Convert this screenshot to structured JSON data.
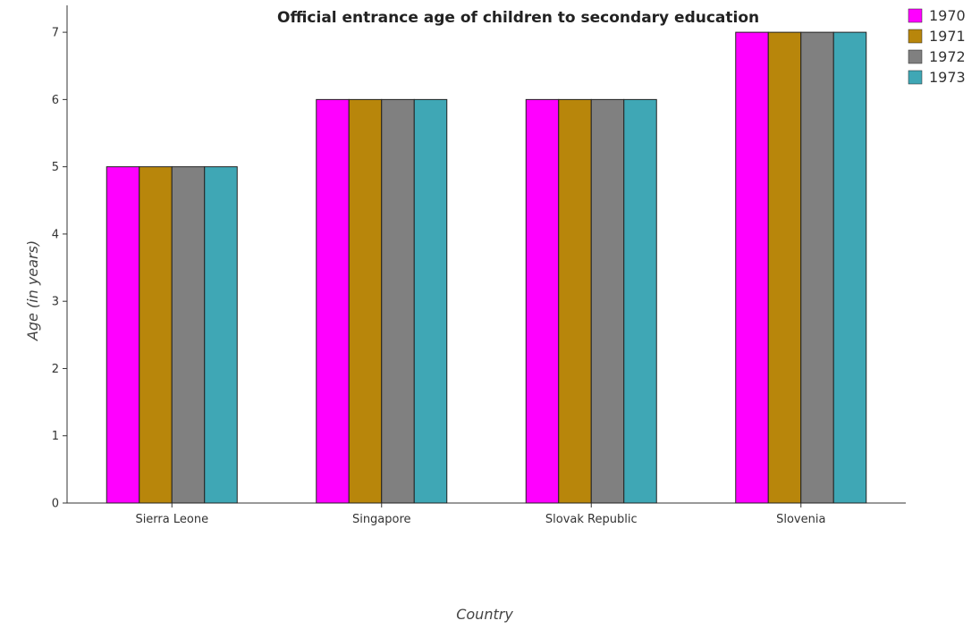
{
  "chart_data": {
    "type": "bar",
    "title": "Official entrance age of children to secondary education",
    "xlabel": "Country",
    "ylabel": "Age (in years)",
    "categories": [
      "Sierra Leone",
      "Singapore",
      "Slovak Republic",
      "Slovenia"
    ],
    "series": [
      {
        "name": "1970",
        "color": "#ff00ff",
        "values": [
          5,
          6,
          6,
          7
        ]
      },
      {
        "name": "1971",
        "color": "#b8860b",
        "values": [
          5,
          6,
          6,
          7
        ]
      },
      {
        "name": "1972",
        "color": "#808080",
        "values": [
          5,
          6,
          6,
          7
        ]
      },
      {
        "name": "1973",
        "color": "#3fa7b5",
        "values": [
          5,
          6,
          6,
          7
        ]
      }
    ],
    "ylim": [
      0,
      7.4
    ],
    "yticks": [
      0,
      1,
      2,
      3,
      4,
      5,
      6,
      7
    ],
    "grid": false,
    "legend_position": "top-right"
  }
}
